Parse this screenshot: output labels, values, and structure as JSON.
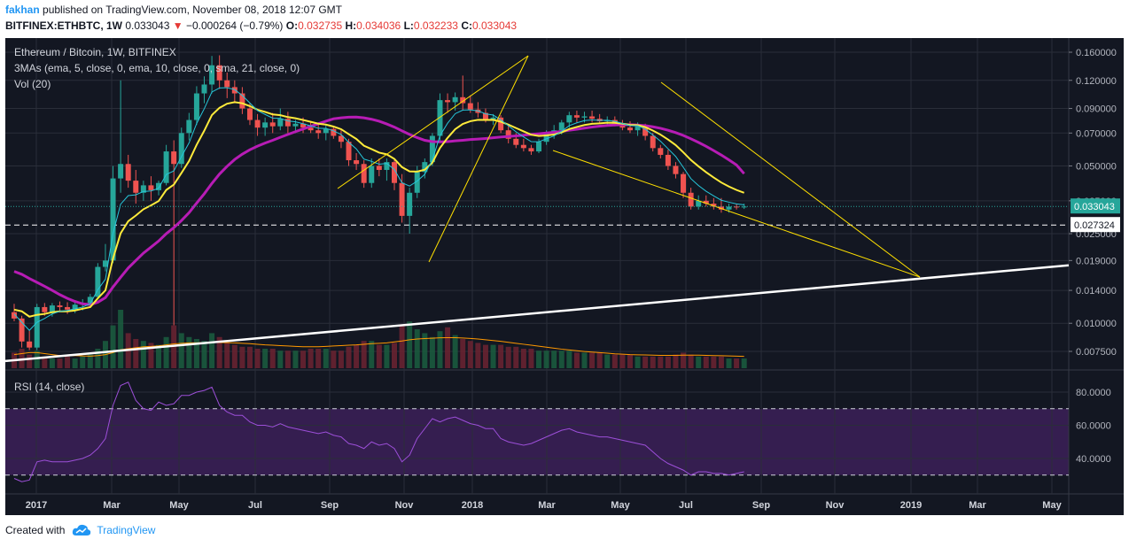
{
  "header": {
    "author": "fakhan",
    "published": "published on TradingView.com, November 08, 2018 12:07 GMT",
    "symbol_line": "BITFINEX:ETHBTC, 1W",
    "last": "0.033043",
    "change_arrow": "▼",
    "change": "−0.000264 (−0.79%)",
    "o_label": "O:",
    "o": "0.032735",
    "h_label": "H:",
    "h": "0.034036",
    "l_label": "L:",
    "l": "0.032233",
    "c_label": "C:",
    "c": "0.033043"
  },
  "legend": {
    "title": "Ethereum / Bitcoin, 1W, BITFINEX",
    "mas": "3MAs (ema, 5, close, 0, ema, 10, close, 0, sma, 21, close, 0)",
    "vol": "Vol (20)",
    "rsi": "RSI (14, close)"
  },
  "colors": {
    "background": "#131722",
    "up": "#26a69a",
    "down": "#ef5350",
    "ema5": "#26c6da",
    "ema10": "#ffeb3b",
    "sma21": "#b71cb5",
    "trend_yellow": "#ffe000",
    "support_white": "#ffffff",
    "rsi_line": "#9c4fd8",
    "rsi_band": "#3a1f55",
    "vol_ma": "#ff9800",
    "price_tag": "#26a69a"
  },
  "footer": {
    "created_with": "Created with",
    "brand": "TradingView"
  },
  "chart_data": {
    "type": "candlestick",
    "x_labels": [
      "2017",
      "Mar",
      "May",
      "Jul",
      "Sep",
      "Nov",
      "2018",
      "Mar",
      "May",
      "Jul",
      "Sep",
      "Nov",
      "2019",
      "Mar",
      "May"
    ],
    "price_axis_ticks": [
      "0.160000",
      "0.120000",
      "0.090000",
      "0.070000",
      "0.050000",
      "0.035000",
      "0.025000",
      "0.019000",
      "0.014000",
      "0.010000",
      "0.007500"
    ],
    "price_scale": "log",
    "price_tag": "0.033043",
    "dashed_level_tag": "0.027324",
    "dashed_level": 0.027324,
    "rsi_axis_ticks": [
      "80.0000",
      "60.0000",
      "40.0000"
    ],
    "rsi_band": [
      30,
      70
    ],
    "candles": [
      [
        0.0112,
        0.0122,
        0.0102,
        0.0105
      ],
      [
        0.0105,
        0.0108,
        0.0078,
        0.0083
      ],
      [
        0.0083,
        0.0093,
        0.0076,
        0.0078
      ],
      [
        0.0078,
        0.0122,
        0.0076,
        0.0118
      ],
      [
        0.0118,
        0.0123,
        0.0108,
        0.0112
      ],
      [
        0.0112,
        0.0123,
        0.0107,
        0.012
      ],
      [
        0.012,
        0.0125,
        0.0112,
        0.0118
      ],
      [
        0.0118,
        0.0124,
        0.011,
        0.0115
      ],
      [
        0.0115,
        0.0125,
        0.0111,
        0.0121
      ],
      [
        0.0121,
        0.0128,
        0.0114,
        0.0123
      ],
      [
        0.0123,
        0.0135,
        0.012,
        0.0131
      ],
      [
        0.0131,
        0.0185,
        0.0128,
        0.0178
      ],
      [
        0.0178,
        0.0225,
        0.017,
        0.019
      ],
      [
        0.019,
        0.05,
        0.0185,
        0.044
      ],
      [
        0.044,
        0.12,
        0.038,
        0.051
      ],
      [
        0.051,
        0.056,
        0.04,
        0.043
      ],
      [
        0.043,
        0.048,
        0.034,
        0.038
      ],
      [
        0.038,
        0.043,
        0.035,
        0.041
      ],
      [
        0.041,
        0.045,
        0.035,
        0.039
      ],
      [
        0.039,
        0.043,
        0.037,
        0.042
      ],
      [
        0.042,
        0.062,
        0.041,
        0.058
      ],
      [
        0.058,
        0.065,
        0.0098,
        0.051
      ],
      [
        0.051,
        0.074,
        0.049,
        0.07
      ],
      [
        0.07,
        0.086,
        0.065,
        0.08
      ],
      [
        0.08,
        0.113,
        0.076,
        0.105
      ],
      [
        0.105,
        0.125,
        0.095,
        0.115
      ],
      [
        0.115,
        0.154,
        0.105,
        0.14
      ],
      [
        0.14,
        0.155,
        0.11,
        0.12
      ],
      [
        0.12,
        0.13,
        0.1,
        0.112
      ],
      [
        0.112,
        0.12,
        0.095,
        0.105
      ],
      [
        0.105,
        0.112,
        0.085,
        0.09
      ],
      [
        0.09,
        0.095,
        0.076,
        0.08
      ],
      [
        0.08,
        0.085,
        0.068,
        0.074
      ],
      [
        0.074,
        0.082,
        0.068,
        0.078
      ],
      [
        0.078,
        0.086,
        0.07,
        0.075
      ],
      [
        0.075,
        0.09,
        0.072,
        0.081
      ],
      [
        0.081,
        0.087,
        0.07,
        0.075
      ],
      [
        0.075,
        0.08,
        0.07,
        0.077
      ],
      [
        0.077,
        0.082,
        0.07,
        0.074
      ],
      [
        0.074,
        0.079,
        0.07,
        0.072
      ],
      [
        0.072,
        0.078,
        0.066,
        0.07
      ],
      [
        0.07,
        0.076,
        0.065,
        0.073
      ],
      [
        0.073,
        0.075,
        0.066,
        0.068
      ],
      [
        0.068,
        0.072,
        0.06,
        0.064
      ],
      [
        0.064,
        0.066,
        0.05,
        0.053
      ],
      [
        0.053,
        0.057,
        0.048,
        0.051
      ],
      [
        0.051,
        0.053,
        0.04,
        0.042
      ],
      [
        0.042,
        0.054,
        0.04,
        0.05
      ],
      [
        0.05,
        0.054,
        0.045,
        0.048
      ],
      [
        0.048,
        0.054,
        0.043,
        0.052
      ],
      [
        0.052,
        0.053,
        0.039,
        0.042
      ],
      [
        0.042,
        0.046,
        0.028,
        0.03
      ],
      [
        0.03,
        0.04,
        0.025,
        0.038
      ],
      [
        0.038,
        0.05,
        0.036,
        0.047
      ],
      [
        0.047,
        0.054,
        0.044,
        0.052
      ],
      [
        0.052,
        0.07,
        0.05,
        0.068
      ],
      [
        0.068,
        0.105,
        0.064,
        0.098
      ],
      [
        0.098,
        0.105,
        0.086,
        0.096
      ],
      [
        0.096,
        0.106,
        0.088,
        0.101
      ],
      [
        0.101,
        0.126,
        0.088,
        0.095
      ],
      [
        0.095,
        0.103,
        0.086,
        0.089
      ],
      [
        0.089,
        0.096,
        0.082,
        0.086
      ],
      [
        0.086,
        0.09,
        0.078,
        0.08
      ],
      [
        0.08,
        0.085,
        0.076,
        0.082
      ],
      [
        0.082,
        0.084,
        0.07,
        0.072
      ],
      [
        0.072,
        0.076,
        0.063,
        0.066
      ],
      [
        0.066,
        0.07,
        0.06,
        0.062
      ],
      [
        0.062,
        0.066,
        0.058,
        0.06
      ],
      [
        0.06,
        0.062,
        0.056,
        0.058
      ],
      [
        0.058,
        0.066,
        0.057,
        0.064
      ],
      [
        0.064,
        0.072,
        0.062,
        0.07
      ],
      [
        0.07,
        0.076,
        0.066,
        0.072
      ],
      [
        0.072,
        0.08,
        0.069,
        0.078
      ],
      [
        0.078,
        0.087,
        0.074,
        0.084
      ],
      [
        0.084,
        0.088,
        0.078,
        0.082
      ],
      [
        0.082,
        0.087,
        0.078,
        0.083
      ],
      [
        0.083,
        0.088,
        0.078,
        0.081
      ],
      [
        0.081,
        0.085,
        0.077,
        0.079
      ],
      [
        0.079,
        0.083,
        0.075,
        0.08
      ],
      [
        0.08,
        0.083,
        0.075,
        0.077
      ],
      [
        0.077,
        0.08,
        0.072,
        0.074
      ],
      [
        0.074,
        0.079,
        0.07,
        0.072
      ],
      [
        0.072,
        0.078,
        0.068,
        0.075
      ],
      [
        0.075,
        0.077,
        0.065,
        0.068
      ],
      [
        0.068,
        0.07,
        0.058,
        0.06
      ],
      [
        0.06,
        0.062,
        0.054,
        0.056
      ],
      [
        0.056,
        0.059,
        0.048,
        0.05
      ],
      [
        0.05,
        0.052,
        0.044,
        0.046
      ],
      [
        0.046,
        0.047,
        0.036,
        0.038
      ],
      [
        0.038,
        0.04,
        0.032,
        0.033
      ],
      [
        0.033,
        0.037,
        0.032,
        0.035
      ],
      [
        0.035,
        0.037,
        0.033,
        0.034
      ],
      [
        0.034,
        0.036,
        0.032,
        0.033
      ],
      [
        0.033,
        0.036,
        0.031,
        0.032
      ],
      [
        0.032,
        0.034,
        0.031,
        0.033
      ],
      [
        0.033,
        0.034,
        0.032,
        0.0327
      ],
      [
        0.0327,
        0.034,
        0.0322,
        0.033
      ]
    ],
    "ema5": [
      0.011,
      0.0101,
      0.0093,
      0.0101,
      0.0105,
      0.011,
      0.0113,
      0.0114,
      0.0116,
      0.0118,
      0.0122,
      0.0141,
      0.0157,
      0.0251,
      0.0338,
      0.0369,
      0.0372,
      0.0385,
      0.0387,
      0.0398,
      0.0458,
      0.0475,
      0.055,
      0.0633,
      0.0772,
      0.0898,
      0.1065,
      0.111,
      0.1113,
      0.1092,
      0.1028,
      0.0952,
      0.0881,
      0.0847,
      0.0815,
      0.0813,
      0.0792,
      0.0785,
      0.077,
      0.0753,
      0.0735,
      0.0734,
      0.0716,
      0.069,
      0.0637,
      0.0595,
      0.0536,
      0.0524,
      0.0509,
      0.0513,
      0.0482,
      0.0421,
      0.0407,
      0.0428,
      0.0459,
      0.0532,
      0.0681,
      0.0774,
      0.0853,
      0.0885,
      0.0887,
      0.0878,
      0.0852,
      0.0841,
      0.0801,
      0.0754,
      0.0709,
      0.0673,
      0.0641,
      0.064,
      0.066,
      0.068,
      0.0713,
      0.0755,
      0.0777,
      0.0795,
      0.08,
      0.0797,
      0.0798,
      0.0789,
      0.0773,
      0.0755,
      0.0754,
      0.0729,
      0.0686,
      0.0644,
      0.0596,
      0.0551,
      0.0493,
      0.0439,
      0.0409,
      0.0386,
      0.0368,
      0.0352,
      0.0345,
      0.0339,
      0.0336
    ],
    "ema10": [
      0.0115,
      0.0113,
      0.0107,
      0.0109,
      0.011,
      0.0112,
      0.0113,
      0.0113,
      0.0114,
      0.0116,
      0.0118,
      0.0129,
      0.014,
      0.0194,
      0.0251,
      0.0284,
      0.0301,
      0.0321,
      0.0334,
      0.0349,
      0.0391,
      0.0413,
      0.0465,
      0.0526,
      0.0621,
      0.0717,
      0.0841,
      0.0906,
      0.0945,
      0.096,
      0.0949,
      0.0922,
      0.0889,
      0.0869,
      0.0847,
      0.084,
      0.0824,
      0.0814,
      0.08,
      0.0785,
      0.077,
      0.0763,
      0.0748,
      0.0728,
      0.0692,
      0.0659,
      0.0615,
      0.0594,
      0.0573,
      0.0563,
      0.0537,
      0.0494,
      0.0473,
      0.0472,
      0.0481,
      0.0517,
      0.0601,
      0.0666,
      0.0728,
      0.0768,
      0.079,
      0.0801,
      0.08,
      0.0801,
      0.0786,
      0.0763,
      0.0737,
      0.0712,
      0.0688,
      0.0679,
      0.0683,
      0.0689,
      0.0705,
      0.0729,
      0.0745,
      0.076,
      0.0769,
      0.0773,
      0.0778,
      0.0777,
      0.077,
      0.0761,
      0.0759,
      0.0744,
      0.0718,
      0.0689,
      0.0655,
      0.0619,
      0.0575,
      0.0531,
      0.0498,
      0.0469,
      0.0444,
      0.0422,
      0.0405,
      0.0391,
      0.038
    ],
    "sma21": [
      0.017,
      0.0165,
      0.0158,
      0.0152,
      0.0146,
      0.014,
      0.0134,
      0.0129,
      0.0125,
      0.0122,
      0.0121,
      0.0124,
      0.013,
      0.0145,
      0.016,
      0.0176,
      0.019,
      0.0205,
      0.0218,
      0.0232,
      0.025,
      0.0266,
      0.0286,
      0.031,
      0.0342,
      0.0376,
      0.0418,
      0.046,
      0.0498,
      0.0534,
      0.0564,
      0.059,
      0.0612,
      0.0632,
      0.065,
      0.067,
      0.069,
      0.071,
      0.073,
      0.075,
      0.077,
      0.079,
      0.081,
      0.0818,
      0.0823,
      0.0824,
      0.0818,
      0.0806,
      0.079,
      0.0768,
      0.0744,
      0.0716,
      0.069,
      0.0668,
      0.065,
      0.0641,
      0.064,
      0.0641,
      0.0646,
      0.065,
      0.0655,
      0.0658,
      0.0662,
      0.0667,
      0.0672,
      0.0676,
      0.068,
      0.0685,
      0.069,
      0.0695,
      0.07,
      0.0705,
      0.0712,
      0.072,
      0.0728,
      0.0736,
      0.0744,
      0.0751,
      0.0756,
      0.076,
      0.0762,
      0.0762,
      0.076,
      0.0755,
      0.0746,
      0.0735,
      0.072,
      0.0703,
      0.0683,
      0.066,
      0.0636,
      0.0611,
      0.0585,
      0.0559,
      0.0532,
      0.0505,
      0.0462
    ],
    "volume": [
      8,
      10,
      7,
      9,
      6,
      5,
      5,
      6,
      5,
      6,
      7,
      10,
      14,
      22,
      30,
      18,
      15,
      14,
      13,
      12,
      16,
      22,
      18,
      16,
      15,
      14,
      18,
      16,
      13,
      12,
      11,
      11,
      10,
      10,
      10,
      9,
      9,
      9,
      9,
      10,
      10,
      10,
      9,
      9,
      11,
      12,
      14,
      14,
      12,
      12,
      13,
      22,
      24,
      20,
      18,
      16,
      19,
      21,
      17,
      15,
      14,
      13,
      12,
      12,
      12,
      11,
      11,
      10,
      10,
      9,
      9,
      9,
      9,
      9,
      8,
      8,
      8,
      8,
      7,
      7,
      7,
      7,
      6,
      6,
      6,
      6,
      6,
      7,
      8,
      7,
      6,
      6,
      6,
      6,
      5,
      5,
      5
    ],
    "volume_ma": [
      7,
      7.5,
      8,
      8,
      7.5,
      7,
      6.5,
      6.5,
      6.5,
      6.3,
      6.2,
      6.5,
      7,
      8,
      9.5,
      10,
      10.5,
      11,
      11.2,
      11.5,
      12,
      12.5,
      12.8,
      13,
      13,
      13.1,
      13.2,
      13.2,
      13.1,
      13,
      12.8,
      12.6,
      12.3,
      12,
      11.8,
      11.6,
      11.4,
      11.2,
      11,
      11,
      11,
      11.2,
      11.4,
      11.6,
      11.8,
      12,
      12.3,
      12.6,
      12.8,
      13,
      13.5,
      14,
      14.6,
      15,
      15.2,
      15.4,
      15.6,
      15.7,
      15.7,
      15.5,
      15.3,
      15,
      14.6,
      14.2,
      13.8,
      13.3,
      12.8,
      12.3,
      11.8,
      11.3,
      10.8,
      10.3,
      9.8,
      9.4,
      9,
      8.6,
      8.3,
      8,
      7.7,
      7.4,
      7.2,
      7,
      6.9,
      6.8,
      6.7,
      6.6,
      6.6,
      6.6,
      6.7,
      6.7,
      6.7,
      6.6,
      6.5,
      6.4,
      6.3,
      6.2,
      6.1
    ],
    "rsi": [
      28,
      26,
      27,
      38,
      39,
      38,
      38,
      38,
      39,
      40,
      42,
      46,
      52,
      72,
      84,
      86,
      75,
      70,
      69,
      74,
      72,
      73,
      78,
      78,
      80,
      81,
      83,
      72,
      68,
      66,
      66,
      62,
      60,
      60,
      59,
      61,
      59,
      58,
      57,
      56,
      55,
      56,
      54,
      53,
      49,
      48,
      46,
      50,
      48,
      49,
      46,
      38,
      42,
      52,
      58,
      64,
      62,
      64,
      65,
      63,
      61,
      60,
      58,
      58,
      52,
      50,
      49,
      48,
      49,
      51,
      53,
      55,
      57,
      58,
      56,
      55,
      54,
      53,
      53,
      52,
      51,
      50,
      49,
      48,
      44,
      40,
      37,
      35,
      33,
      30,
      32,
      32,
      31,
      31,
      30,
      31,
      32
    ]
  }
}
